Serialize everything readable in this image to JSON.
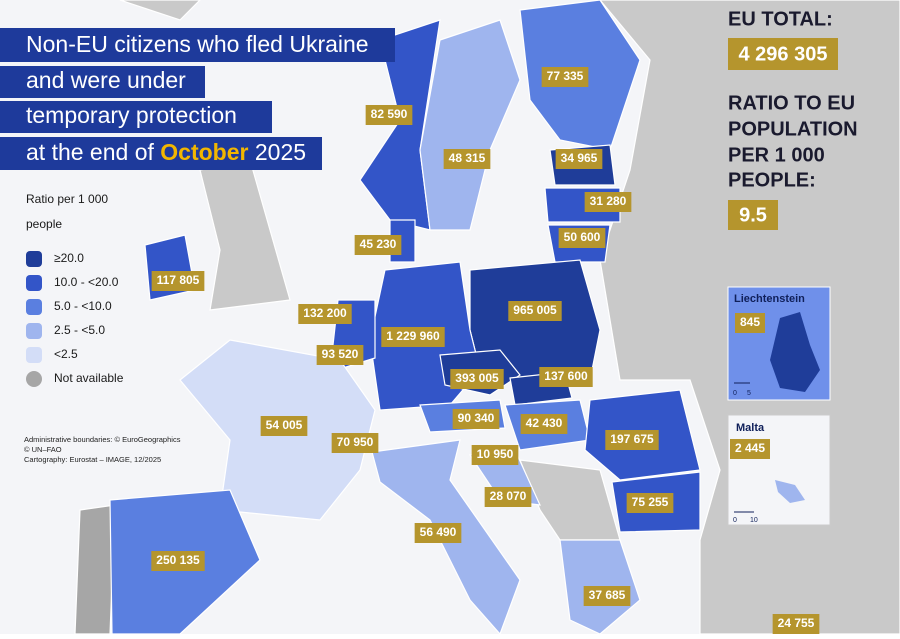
{
  "title": {
    "lines": [
      "Non-EU citizens who fled Ukraine",
      "and were under",
      "temporary protection"
    ],
    "last_line": {
      "before": "at the end of",
      "highlight": "October",
      "after": "2025"
    }
  },
  "legend": {
    "title_lines": [
      "Ratio per 1 000",
      "people"
    ],
    "items": [
      "≥20.0",
      "10.0 - <20.0",
      "5.0 - <10.0",
      "2.5 - <5.0",
      "<2.5",
      "Not available"
    ]
  },
  "credits": [
    "Administrative boundaries: © EuroGeographics",
    "© UN–FAO",
    "Cartography: Eurostat – IMAGE, 12/2025"
  ],
  "summary": {
    "total_label": "EU TOTAL:",
    "total": "4 296 305",
    "ratio_label_lines": [
      "RATIO TO EU",
      "POPULATION",
      "PER 1 000",
      "PEOPLE:"
    ],
    "ratio": "9.5"
  },
  "map": {
    "labels": [
      "77 335",
      "82 590",
      "48 315",
      "34 965",
      "31 280",
      "50 600",
      "45 230",
      "117 805",
      "132 200",
      "1 229 960",
      "965 005",
      "93 520",
      "393 005",
      "137 600",
      "54 005",
      "70 950",
      "90 340",
      "42 430",
      "197 675",
      "10 950",
      "28 070",
      "75 255",
      "56 490",
      "250 135",
      "37 685",
      "24 755"
    ]
  },
  "insets": [
    {
      "name": "Liechtenstein",
      "value": "845",
      "scale": [
        "0",
        "5"
      ]
    },
    {
      "name": "Malta",
      "value": "2 445",
      "scale": [
        "0",
        "10"
      ]
    }
  ]
}
